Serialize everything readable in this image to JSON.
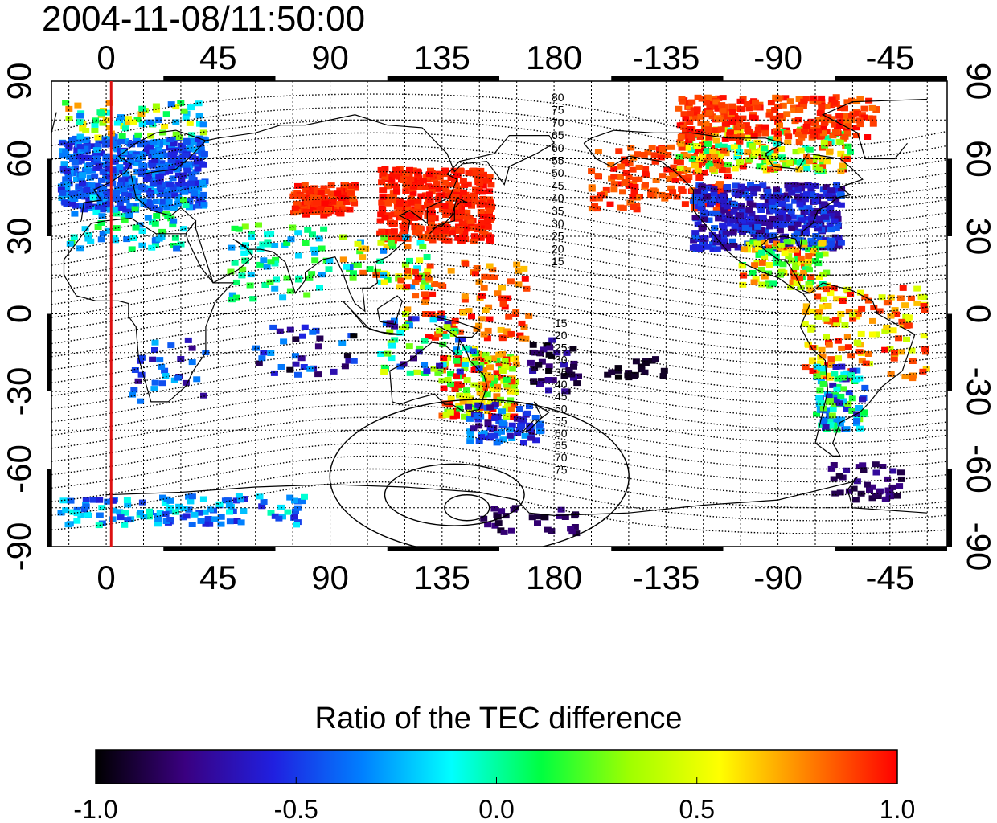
{
  "map": {
    "timestamp": "2004-11-08/11:50:00",
    "projection": "equirectangular",
    "lon_ticks": [
      0,
      45,
      90,
      135,
      180,
      -135,
      -90,
      -45
    ],
    "lat_ticks": [
      90,
      60,
      30,
      0,
      -30,
      -60,
      -90
    ],
    "lon_tick_labels": [
      "0",
      "45",
      "90",
      "135",
      "180",
      "-135",
      "-90",
      "-45"
    ],
    "lat_tick_labels": [
      "90",
      "60",
      "30",
      "0",
      "-30",
      "-60",
      "-90"
    ],
    "lon_range": [
      -22,
      338
    ],
    "lat_range": [
      -90,
      90
    ],
    "gridlines": true,
    "terminator_longitude": 2,
    "terminator_color": "#dd1111",
    "contour_labels_north": [
      "80",
      "75",
      "70",
      "65",
      "60",
      "55",
      "50",
      "45",
      "40",
      "35",
      "30",
      "25",
      "20",
      "15"
    ],
    "contour_labels_south": [
      "15",
      "20",
      "25",
      "30",
      "35",
      "40",
      "45",
      "50",
      "55",
      "60",
      "65",
      "70",
      "75"
    ]
  },
  "colorbar": {
    "title": "Ratio of the TEC difference",
    "min": -1.0,
    "max": 1.0,
    "tick_labels": [
      "-1.0",
      "-0.5",
      "0.0",
      "0.5",
      "1.0"
    ],
    "colormap": [
      "#000000",
      "#3a0080",
      "#2020e0",
      "#0080ff",
      "#00ffff",
      "#00ff40",
      "#a0ff00",
      "#ffff00",
      "#ff8000",
      "#ff0000"
    ]
  }
}
